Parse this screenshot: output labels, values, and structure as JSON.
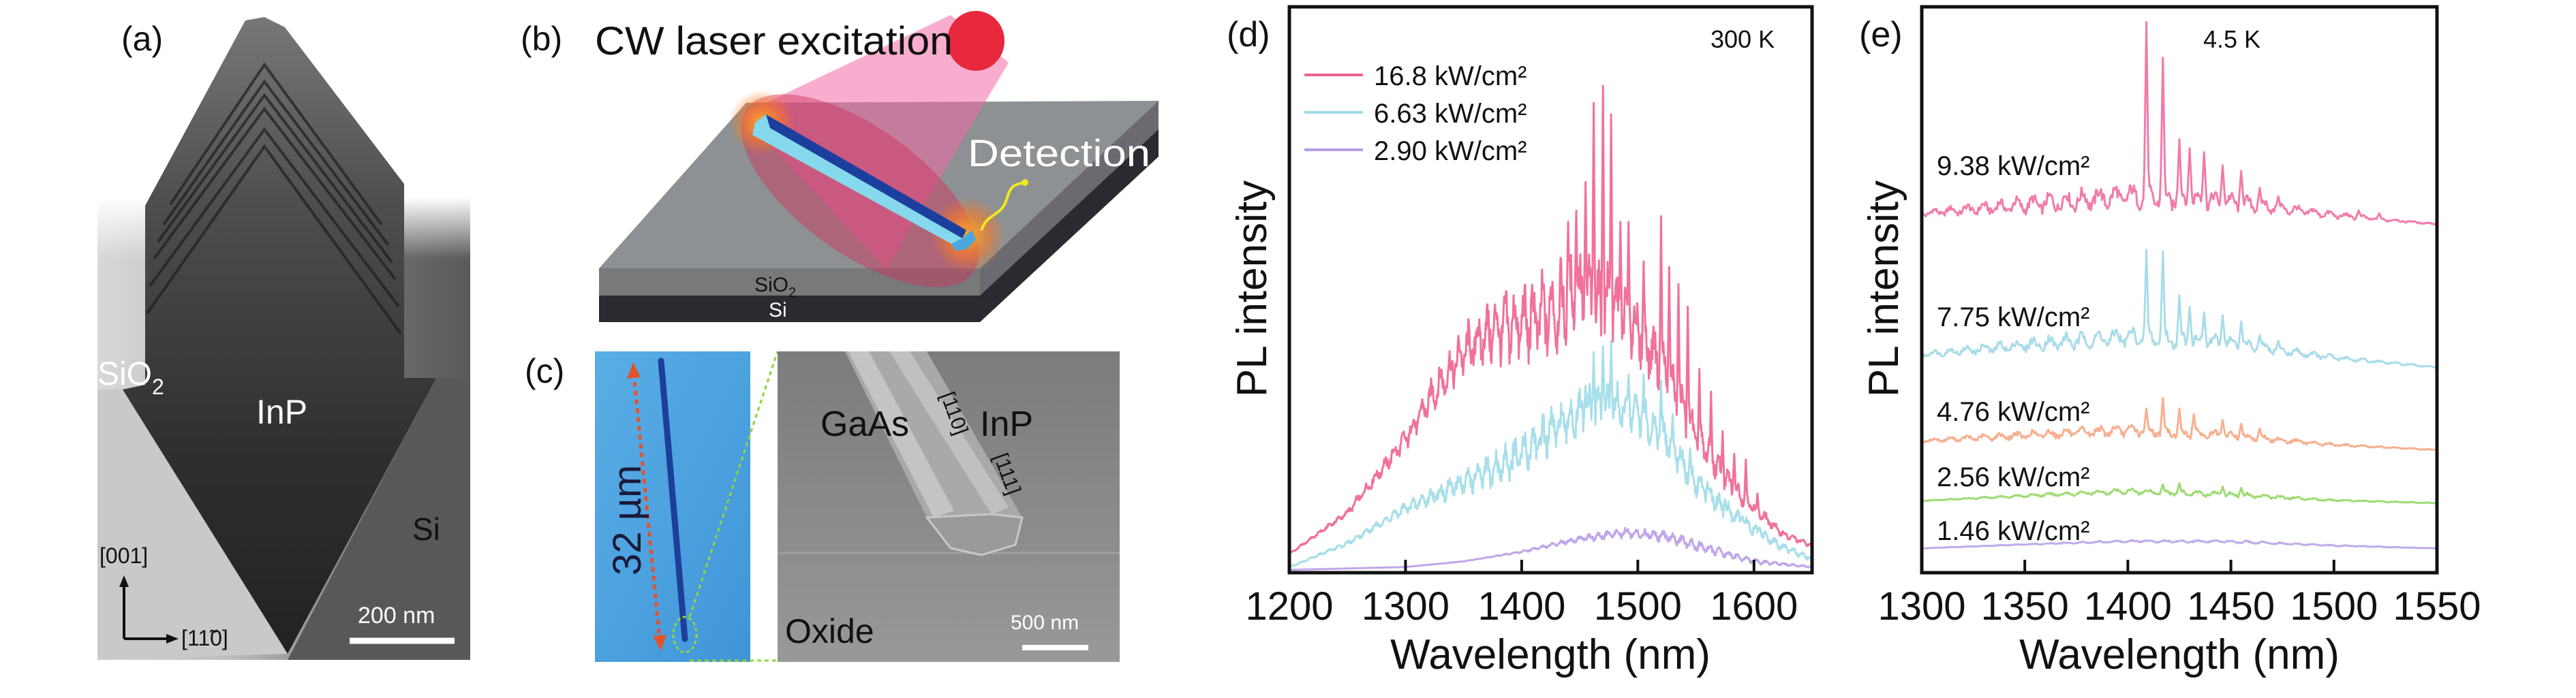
{
  "panels": {
    "a": {
      "label": "(a)",
      "sio2": "SiO",
      "sio2_sub": "2",
      "inp": "InP",
      "si": "Si",
      "dir_vertical": "[001]",
      "dir_horizontal": "[11̃0]",
      "scale": "200 nm"
    },
    "b": {
      "label": "(b)",
      "title": "CW laser excitation",
      "detection": "Detection",
      "sio2": "SiO",
      "sio2_sub": "2",
      "si": "Si"
    },
    "c": {
      "label": "(c)",
      "length": "32 µm",
      "gaas": "GaAs",
      "inp": "InP",
      "dir1": "[110]",
      "dir2": "[111]",
      "oxide": "Oxide",
      "scale": "500 nm"
    },
    "d": {
      "label": "(d)"
    },
    "e": {
      "label": "(e)"
    }
  },
  "colors": {
    "laser": "#e8283c",
    "cone": "#f26aa6",
    "wire_top": "#86d8ec",
    "wire_side": "#1c3f9e",
    "sem_bg": "#8a8a8a",
    "blue_img": "#4ea3e0",
    "arrow": "#e0552e",
    "zoom_lines": "#8fd63a"
  },
  "chart_data": [
    {
      "type": "line",
      "annotation": "300 K",
      "xlabel": "Wavelength (nm)",
      "ylabel": "PL intensity",
      "xlim": [
        1200,
        1650
      ],
      "ylim": [
        0,
        1
      ],
      "xticks": [
        1200,
        1300,
        1400,
        1500,
        1600
      ],
      "xtick_labels": [
        "1200",
        "1300",
        "1400",
        "1500",
        "1600"
      ],
      "grid": false,
      "legend": "top-left",
      "series": [
        {
          "name": "16.8 kW/cm²",
          "color": "#f0628f",
          "x": [
            1200,
            1250,
            1300,
            1325,
            1350,
            1375,
            1400,
            1425,
            1450,
            1475,
            1500,
            1525,
            1550,
            1575,
            1600,
            1625,
            1650
          ],
          "y": [
            0.033,
            0.106,
            0.236,
            0.32,
            0.39,
            0.43,
            0.44,
            0.46,
            0.49,
            0.47,
            0.43,
            0.35,
            0.244,
            0.167,
            0.114,
            0.068,
            0.048
          ],
          "ripple": 0.09,
          "ripple_center": 1440,
          "ripple_width": 120,
          "mode_spacing": 8,
          "mode_peaks": [
            [
              1440,
              0.62
            ],
            [
              1447,
              0.64
            ],
            [
              1455,
              0.69
            ],
            [
              1462,
              0.83
            ],
            [
              1470,
              0.86
            ],
            [
              1477,
              0.81
            ],
            [
              1485,
              0.62
            ],
            [
              1492,
              0.62
            ],
            [
              1505,
              0.55
            ],
            [
              1520,
              0.63
            ],
            [
              1527,
              0.54
            ],
            [
              1535,
              0.51
            ],
            [
              1543,
              0.47
            ],
            [
              1553,
              0.36
            ],
            [
              1563,
              0.32
            ],
            [
              1573,
              0.25
            ],
            [
              1583,
              0.21
            ],
            [
              1593,
              0.2
            ],
            [
              1603,
              0.14
            ]
          ]
        },
        {
          "name": "6.63 kW/cm²",
          "color": "#9fdbe8",
          "x": [
            1200,
            1250,
            1300,
            1350,
            1375,
            1400,
            1425,
            1450,
            1475,
            1500,
            1525,
            1550,
            1575,
            1600,
            1625,
            1650
          ],
          "y": [
            0.01,
            0.052,
            0.114,
            0.16,
            0.18,
            0.21,
            0.25,
            0.28,
            0.3,
            0.28,
            0.236,
            0.16,
            0.114,
            0.075,
            0.045,
            0.025
          ],
          "ripple": 0.05,
          "ripple_center": 1450,
          "ripple_width": 130,
          "mode_spacing": 8,
          "mode_peaks": [
            [
              1455,
              0.33
            ],
            [
              1462,
              0.39
            ],
            [
              1470,
              0.4
            ],
            [
              1477,
              0.41
            ],
            [
              1492,
              0.35
            ],
            [
              1505,
              0.35
            ],
            [
              1520,
              0.34
            ],
            [
              1530,
              0.28
            ],
            [
              1545,
              0.22
            ],
            [
              1560,
              0.16
            ],
            [
              1575,
              0.13
            ],
            [
              1590,
              0.1
            ],
            [
              1605,
              0.08
            ]
          ]
        },
        {
          "name": "2.90 kW/cm²",
          "color": "#b99ce8",
          "x": [
            1200,
            1300,
            1350,
            1400,
            1450,
            1490,
            1525,
            1550,
            1600,
            1650
          ],
          "y": [
            0.005,
            0.01,
            0.02,
            0.037,
            0.06,
            0.071,
            0.064,
            0.048,
            0.02,
            0.01
          ],
          "ripple": 0.012,
          "ripple_center": 1520,
          "ripple_width": 90,
          "mode_spacing": 8,
          "mode_peaks": []
        }
      ]
    },
    {
      "type": "line",
      "annotation": "4.5 K",
      "xlabel": "Wavelength (nm)",
      "ylabel": "PL intensity",
      "xlim": [
        1300,
        1550
      ],
      "ylim": [
        0,
        1
      ],
      "xticks": [
        1300,
        1350,
        1400,
        1450,
        1500,
        1550
      ],
      "xtick_labels": [
        "1300",
        "1350",
        "1400",
        "1450",
        "1500",
        "1550"
      ],
      "grid": false,
      "legend": "inline-labels",
      "series": [
        {
          "name": "9.38 kW/cm²",
          "color": "#f06e9e",
          "x": [
            1300,
            1350,
            1400,
            1450,
            1500,
            1550
          ],
          "y": [
            0.635,
            0.65,
            0.666,
            0.655,
            0.632,
            0.616
          ],
          "ripple": 0.025,
          "ripple_center": 1400,
          "ripple_width": 90,
          "mode_spacing": 8,
          "mode_peaks": [
            [
              1409,
              0.973
            ],
            [
              1417,
              0.91
            ],
            [
              1425,
              0.766
            ],
            [
              1430,
              0.75
            ],
            [
              1437,
              0.743
            ],
            [
              1446,
              0.72
            ],
            [
              1455,
              0.71
            ],
            [
              1464,
              0.68
            ],
            [
              1473,
              0.665
            ],
            [
              1512,
              0.64
            ],
            [
              1522,
              0.635
            ]
          ]
        },
        {
          "name": "7.75 kW/cm²",
          "color": "#9fd8e6",
          "x": [
            1300,
            1350,
            1400,
            1450,
            1500,
            1550
          ],
          "y": [
            0.386,
            0.402,
            0.417,
            0.405,
            0.38,
            0.363
          ],
          "ripple": 0.02,
          "ripple_center": 1400,
          "ripple_width": 90,
          "mode_spacing": 8,
          "mode_peaks": [
            [
              1409,
              0.57
            ],
            [
              1417,
              0.568
            ],
            [
              1425,
              0.49
            ],
            [
              1430,
              0.47
            ],
            [
              1437,
              0.46
            ],
            [
              1446,
              0.455
            ],
            [
              1455,
              0.444
            ],
            [
              1464,
              0.42
            ],
            [
              1473,
              0.41
            ]
          ]
        },
        {
          "name": "4.76 kW/cm²",
          "color": "#f6a684",
          "x": [
            1300,
            1350,
            1400,
            1450,
            1500,
            1550
          ],
          "y": [
            0.233,
            0.243,
            0.252,
            0.242,
            0.226,
            0.217
          ],
          "ripple": 0.012,
          "ripple_center": 1400,
          "ripple_width": 90,
          "mode_spacing": 8,
          "mode_peaks": [
            [
              1409,
              0.29
            ],
            [
              1417,
              0.309
            ],
            [
              1425,
              0.29
            ],
            [
              1432,
              0.28
            ],
            [
              1446,
              0.27
            ],
            [
              1455,
              0.263
            ],
            [
              1464,
              0.255
            ]
          ]
        },
        {
          "name": "2.56 kW/cm²",
          "color": "#93d764",
          "x": [
            1300,
            1350,
            1400,
            1450,
            1500,
            1550
          ],
          "y": [
            0.127,
            0.136,
            0.144,
            0.138,
            0.128,
            0.123
          ],
          "ripple": 0.006,
          "ripple_center": 1420,
          "ripple_width": 80,
          "mode_spacing": 8,
          "mode_peaks": [
            [
              1417,
              0.156
            ],
            [
              1425,
              0.158
            ],
            [
              1446,
              0.152
            ],
            [
              1455,
              0.15
            ]
          ]
        },
        {
          "name": "1.46 kW/cm²",
          "color": "#b7a2ea",
          "x": [
            1300,
            1350,
            1400,
            1450,
            1500,
            1550
          ],
          "y": [
            0.043,
            0.05,
            0.056,
            0.055,
            0.048,
            0.043
          ],
          "ripple": 0.003,
          "ripple_center": 1430,
          "ripple_width": 80,
          "mode_spacing": 8,
          "mode_peaks": []
        }
      ]
    }
  ]
}
